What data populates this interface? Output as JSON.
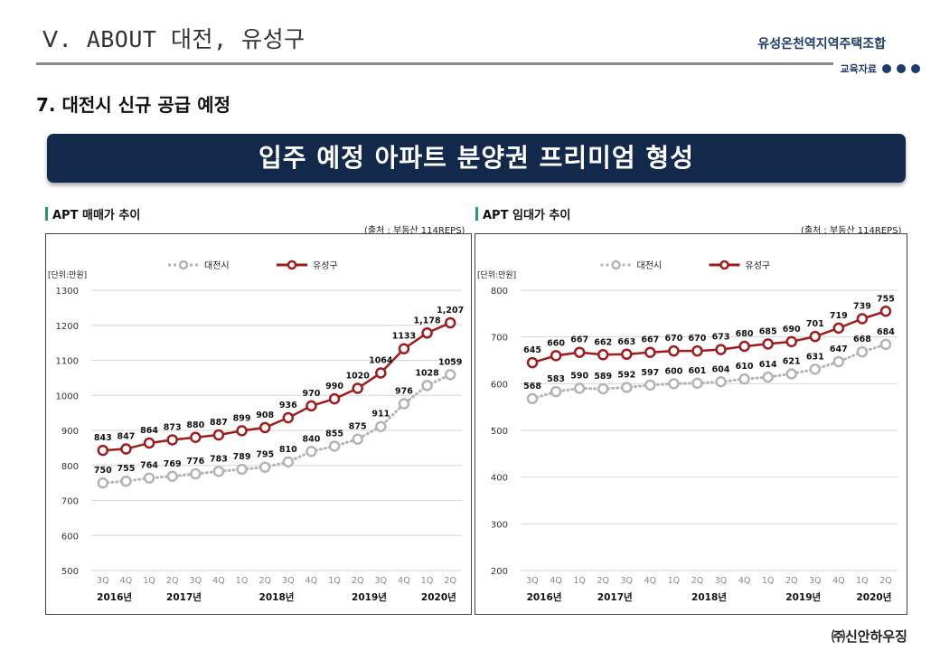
{
  "header": {
    "section_title": "Ⅴ. ABOUT 대전, 유성구",
    "org_name": "유성온천역지역주택조합",
    "edu_label": "교육자료"
  },
  "subtitle": "7. 대전시 신규 공급 예정",
  "banner": "입주 예정 아파트 분양권 프리미엄 형성",
  "footer": "㈜신안하우징",
  "colors": {
    "daejeon": "#b4b4b4",
    "yuseong": "#a01c1c",
    "banner_bg": "#13294b",
    "accent": "#1f3a6b"
  },
  "chart_data": [
    {
      "type": "line",
      "panel_title": "APT 매매가 추이",
      "source": "(출처 : 부동산 114REPS)",
      "unit": "[단위:만원]",
      "categories": [
        "3Q",
        "4Q",
        "1Q",
        "2Q",
        "3Q",
        "4Q",
        "1Q",
        "2Q",
        "3Q",
        "4Q",
        "1Q",
        "2Q",
        "3Q",
        "4Q",
        "1Q",
        "2Q"
      ],
      "year_labels": [
        {
          "label": "2016년",
          "index": 0.5
        },
        {
          "label": "2017년",
          "index": 3.5
        },
        {
          "label": "2018년",
          "index": 7.5
        },
        {
          "label": "2019년",
          "index": 11.5
        },
        {
          "label": "2020년",
          "index": 14.5
        }
      ],
      "yticks": [
        500,
        600,
        700,
        800,
        900,
        1000,
        1100,
        1200,
        1300
      ],
      "ylim": [
        500,
        1300
      ],
      "legend_position": "top-center",
      "grid": true,
      "series": [
        {
          "name": "대전시",
          "style": "dotted",
          "values": [
            750,
            755,
            764,
            769,
            776,
            783,
            789,
            795,
            810,
            840,
            855,
            875,
            911,
            976,
            1028,
            1059
          ],
          "labels": [
            "750",
            "755",
            "764",
            "769",
            "776",
            "783",
            "789",
            "795",
            "810",
            "840",
            "855",
            "875",
            "911",
            "976",
            "1028",
            "1059"
          ]
        },
        {
          "name": "유성구",
          "style": "solid",
          "values": [
            843,
            847,
            864,
            873,
            880,
            887,
            899,
            908,
            936,
            970,
            990,
            1020,
            1064,
            1133,
            1178,
            1207
          ],
          "labels": [
            "843",
            "847",
            "864",
            "873",
            "880",
            "887",
            "899",
            "908",
            "936",
            "970",
            "990",
            "1020",
            "1064",
            "1133",
            "1,178",
            "1,207"
          ]
        }
      ]
    },
    {
      "type": "line",
      "panel_title": "APT 임대가 추이",
      "source": "(출처 : 부동산 114REPS)",
      "unit": "[단위:만원]",
      "categories": [
        "3Q",
        "4Q",
        "1Q",
        "2Q",
        "3Q",
        "4Q",
        "1Q",
        "2Q",
        "3Q",
        "4Q",
        "1Q",
        "2Q",
        "3Q",
        "4Q",
        "1Q",
        "2Q"
      ],
      "year_labels": [
        {
          "label": "2016년",
          "index": 0.5
        },
        {
          "label": "2017년",
          "index": 3.5
        },
        {
          "label": "2018년",
          "index": 7.5
        },
        {
          "label": "2019년",
          "index": 11.5
        },
        {
          "label": "2020년",
          "index": 14.5
        }
      ],
      "yticks": [
        200,
        300,
        400,
        500,
        600,
        700,
        800
      ],
      "ylim": [
        200,
        800
      ],
      "legend_position": "top-center",
      "grid": true,
      "series": [
        {
          "name": "대전시",
          "style": "dotted",
          "values": [
            568,
            583,
            590,
            589,
            592,
            597,
            600,
            601,
            604,
            610,
            614,
            621,
            631,
            647,
            668,
            684
          ],
          "labels": [
            "568",
            "583",
            "590",
            "589",
            "592",
            "597",
            "600",
            "601",
            "604",
            "610",
            "614",
            "621",
            "631",
            "647",
            "668",
            "684"
          ]
        },
        {
          "name": "유성구",
          "style": "solid",
          "values": [
            645,
            660,
            667,
            662,
            663,
            667,
            670,
            670,
            673,
            680,
            685,
            690,
            701,
            719,
            739,
            755
          ],
          "labels": [
            "645",
            "660",
            "667",
            "662",
            "663",
            "667",
            "670",
            "670",
            "673",
            "680",
            "685",
            "690",
            "701",
            "719",
            "739",
            "755"
          ]
        }
      ]
    }
  ]
}
